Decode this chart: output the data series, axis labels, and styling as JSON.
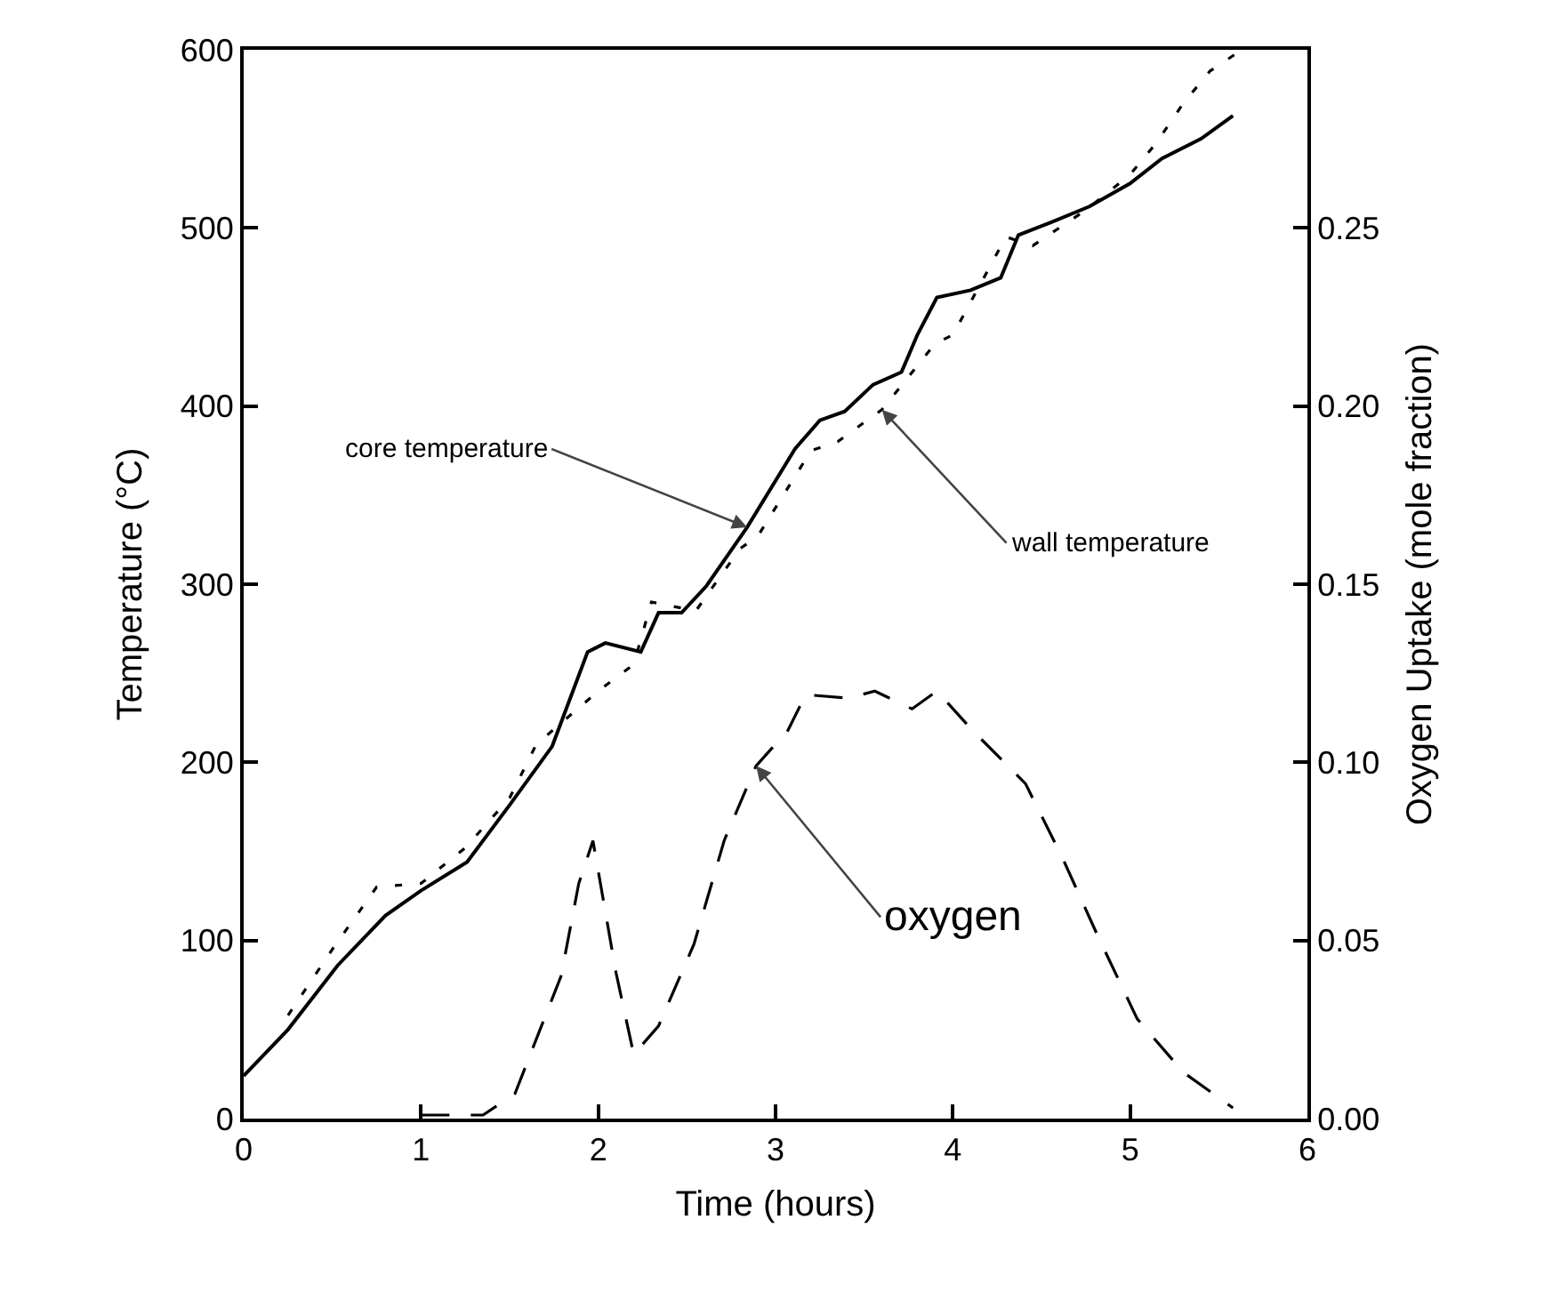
{
  "chart_data": {
    "type": "line",
    "xlabel": "Time (hours)",
    "ylabel": "Temperature (°C)",
    "y2label": "Oxygen Uptake (mole fraction)",
    "xlim": [
      0,
      6
    ],
    "xticks": [
      0,
      1,
      2,
      3,
      4,
      5,
      6
    ],
    "ylim": [
      0,
      600
    ],
    "yticks": [
      0,
      100,
      200,
      300,
      400,
      500,
      600
    ],
    "y2lim": [
      0,
      0.3
    ],
    "y2ticks": [
      {
        "value": 0,
        "label": "0.00"
      },
      {
        "value": 0.05,
        "label": "0.05"
      },
      {
        "value": 0.1,
        "label": "0.10"
      },
      {
        "value": 0.15,
        "label": "0.15"
      },
      {
        "value": 0.2,
        "label": "0.20"
      },
      {
        "value": 0.25,
        "label": "0.25"
      }
    ],
    "grid": false,
    "series": [
      {
        "color": "#000000",
        "line_style": "solid",
        "x": [
          0,
          0.25,
          0.53,
          0.8,
          1.0,
          1.26,
          1.5,
          1.74,
          1.94,
          2.04,
          2.24,
          2.34,
          2.47,
          2.61,
          2.84,
          3.11,
          3.25,
          3.39,
          3.55,
          3.71,
          3.8,
          3.91,
          4.1,
          4.27,
          4.37,
          4.55,
          4.77,
          5.0,
          5.18,
          5.4,
          5.58
        ],
        "values": [
          24,
          50,
          86,
          114,
          128,
          144,
          176,
          209,
          262,
          267,
          262,
          284,
          284,
          299,
          332,
          376,
          392,
          397,
          412,
          419,
          440,
          461,
          465,
          472,
          496,
          503,
          512,
          525,
          539,
          550,
          563
        ]
      },
      {
        "color": "#000000",
        "line_style": "dashed",
        "x": [
          0.25,
          0.5,
          0.75,
          1.0,
          1.25,
          1.5,
          1.65,
          2.0,
          2.2,
          2.3,
          2.55,
          2.8,
          2.9,
          3.2,
          3.35,
          3.6,
          3.9,
          4.0,
          4.3,
          4.45,
          4.75,
          5.0,
          5.15,
          5.3,
          5.45,
          5.6
        ],
        "values": [
          58,
          95,
          130,
          132,
          152,
          180,
          210,
          240,
          255,
          290,
          285,
          320,
          327,
          375,
          380,
          398,
          435,
          440,
          495,
          490,
          510,
          530,
          548,
          570,
          588,
          598
        ]
      },
      {
        "color": "#000000",
        "line_style": "dashed",
        "axis": "y2",
        "x": [
          1.0,
          1.35,
          1.53,
          1.79,
          1.89,
          1.97,
          2.1,
          2.2,
          2.34,
          2.54,
          2.71,
          2.89,
          3.07,
          3.17,
          3.41,
          3.56,
          3.77,
          3.91,
          4.11,
          4.41,
          4.62,
          4.82,
          5.04,
          5.3,
          5.58
        ],
        "values": [
          0.001,
          0.001,
          0.007,
          0.04,
          0.066,
          0.078,
          0.041,
          0.018,
          0.026,
          0.049,
          0.078,
          0.099,
          0.109,
          0.119,
          0.118,
          0.12,
          0.115,
          0.12,
          0.109,
          0.094,
          0.073,
          0.051,
          0.028,
          0.013,
          0.003
        ]
      }
    ],
    "annotations": [
      {
        "text": "core temperature",
        "x": 2.84,
        "y": 332
      },
      {
        "text": "wall temperature",
        "x": 3.6,
        "y": 398
      },
      {
        "text": "oxygen",
        "x": 2.89,
        "y": 198
      }
    ]
  }
}
